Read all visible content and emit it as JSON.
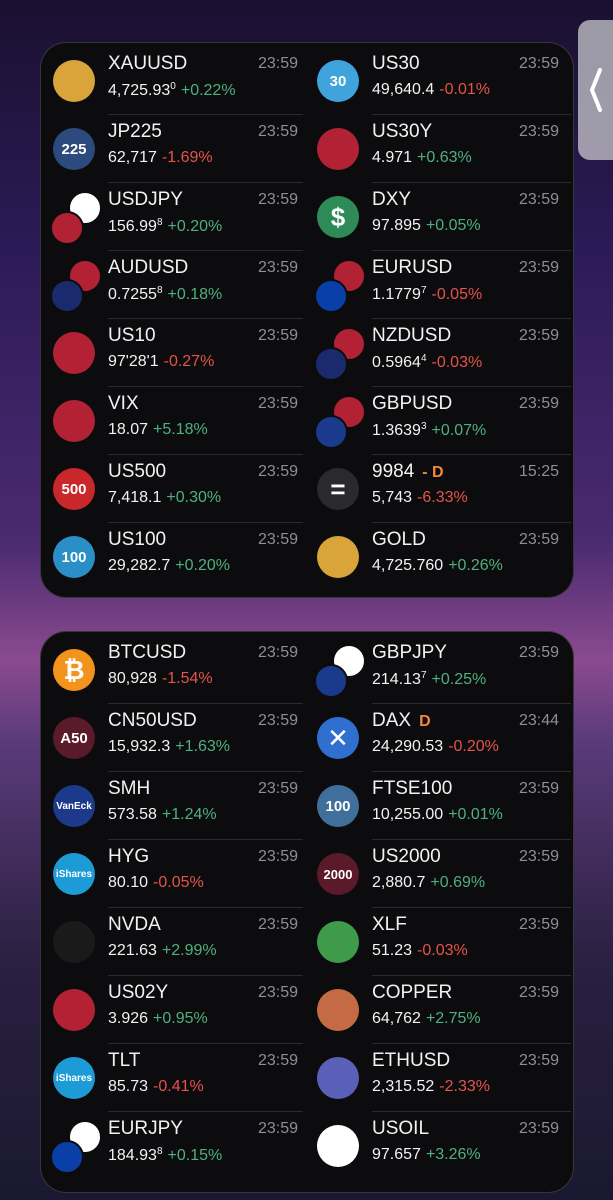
{
  "widgets": [
    {
      "items": [
        {
          "symbol": "XAUUSD",
          "time": "23:59",
          "price": "4,725.93",
          "price_sup": "0",
          "change": "+0.22%",
          "icon": [
            "#d9a43a"
          ]
        },
        {
          "symbol": "US30",
          "time": "23:59",
          "price": "49,640.4",
          "change": "-0.01%",
          "icon": [
            "#3fa3dc"
          ],
          "icon_text": "30"
        },
        {
          "symbol": "JP225",
          "time": "23:59",
          "price": "62,717",
          "change": "-1.69%",
          "icon": [
            "#2c4a7e"
          ],
          "icon_text": "225"
        },
        {
          "symbol": "US30Y",
          "time": "23:59",
          "price": "4.971",
          "change": "+0.63%",
          "icon": [
            "#b22234"
          ]
        },
        {
          "symbol": "USDJPY",
          "time": "23:59",
          "price": "156.99",
          "price_sup": "8",
          "change": "+0.20%",
          "icon": [
            "#ffffff",
            "#b22234"
          ]
        },
        {
          "symbol": "DXY",
          "time": "23:59",
          "price": "97.895",
          "change": "+0.05%",
          "icon": [
            "#2e8b57"
          ],
          "icon_text": "$"
        },
        {
          "symbol": "AUDUSD",
          "time": "23:59",
          "price": "0.7255",
          "price_sup": "8",
          "change": "+0.18%",
          "icon": [
            "#b22234",
            "#1a2a6c"
          ]
        },
        {
          "symbol": "EURUSD",
          "time": "23:59",
          "price": "1.1779",
          "price_sup": "7",
          "change": "-0.05%",
          "icon": [
            "#b22234",
            "#0a3fa8"
          ]
        },
        {
          "symbol": "US10",
          "time": "23:59",
          "price": "97'28'1",
          "change": "-0.27%",
          "icon": [
            "#b22234"
          ]
        },
        {
          "symbol": "NZDUSD",
          "time": "23:59",
          "price": "0.5964",
          "price_sup": "4",
          "change": "-0.03%",
          "icon": [
            "#b22234",
            "#1a2a6c"
          ]
        },
        {
          "symbol": "VIX",
          "time": "23:59",
          "price": "18.07",
          "change": "+5.18%",
          "icon": [
            "#b22234"
          ]
        },
        {
          "symbol": "GBPUSD",
          "time": "23:59",
          "price": "1.3639",
          "price_sup": "3",
          "change": "+0.07%",
          "icon": [
            "#b22234",
            "#1a3a8c"
          ]
        },
        {
          "symbol": "US500",
          "time": "23:59",
          "price": "7,418.1",
          "change": "+0.30%",
          "icon": [
            "#c8282c"
          ],
          "icon_text": "500"
        },
        {
          "symbol": "9984",
          "badge": "- D",
          "time": "15:25",
          "price": "5,743",
          "change": "-6.33%",
          "icon": [
            "#2a2a2e"
          ],
          "icon_text": "="
        },
        {
          "symbol": "US100",
          "time": "23:59",
          "price": "29,282.7",
          "change": "+0.20%",
          "icon": [
            "#2a8fc6"
          ],
          "icon_text": "100"
        },
        {
          "symbol": "GOLD",
          "time": "23:59",
          "price": "4,725.760",
          "change": "+0.26%",
          "icon": [
            "#d9a43a"
          ]
        }
      ]
    },
    {
      "items": [
        {
          "symbol": "BTCUSD",
          "time": "23:59",
          "price": "80,928",
          "change": "-1.54%",
          "icon": [
            "#f2931c"
          ],
          "icon_text": "₿"
        },
        {
          "symbol": "GBPJPY",
          "time": "23:59",
          "price": "214.13",
          "price_sup": "7",
          "change": "+0.25%",
          "icon": [
            "#ffffff",
            "#1a3a8c"
          ]
        },
        {
          "symbol": "CN50USD",
          "time": "23:59",
          "price": "15,932.3",
          "change": "+1.63%",
          "icon": [
            "#5a1a2a"
          ],
          "icon_text": "A50"
        },
        {
          "symbol": "DAX",
          "badge": "D",
          "time": "23:44",
          "price": "24,290.53",
          "change": "-0.20%",
          "icon": [
            "#2f6fd0"
          ],
          "icon_text": "✕"
        },
        {
          "symbol": "SMH",
          "time": "23:59",
          "price": "573.58",
          "change": "+1.24%",
          "icon": [
            "#1d3a8a"
          ],
          "icon_text": "VanEck"
        },
        {
          "symbol": "FTSE100",
          "time": "23:59",
          "price": "10,255.00",
          "change": "+0.01%",
          "icon": [
            "#3f6f9a"
          ],
          "icon_text": "100"
        },
        {
          "symbol": "HYG",
          "time": "23:59",
          "price": "80.10",
          "change": "-0.05%",
          "icon": [
            "#1d9bd7"
          ],
          "icon_text": "iShares"
        },
        {
          "symbol": "US2000",
          "time": "23:59",
          "price": "2,880.7",
          "change": "+0.69%",
          "icon": [
            "#5a1a2a"
          ],
          "icon_text": "2000"
        },
        {
          "symbol": "NVDA",
          "time": "23:59",
          "price": "221.63",
          "change": "+2.99%",
          "icon": [
            "#1a1a1a"
          ]
        },
        {
          "symbol": "XLF",
          "time": "23:59",
          "price": "51.23",
          "change": "-0.03%",
          "icon": [
            "#3f9a4a"
          ]
        },
        {
          "symbol": "US02Y",
          "time": "23:59",
          "price": "3.926",
          "change": "+0.95%",
          "icon": [
            "#b22234"
          ]
        },
        {
          "symbol": "COPPER",
          "time": "23:59",
          "price": "64,762",
          "change": "+2.75%",
          "icon": [
            "#c46a45"
          ]
        },
        {
          "symbol": "TLT",
          "time": "23:59",
          "price": "85.73",
          "change": "-0.41%",
          "icon": [
            "#1d9bd7"
          ],
          "icon_text": "iShares"
        },
        {
          "symbol": "ETHUSD",
          "time": "23:59",
          "price": "2,315.52",
          "change": "-2.33%",
          "icon": [
            "#5a5fb8"
          ]
        },
        {
          "symbol": "EURJPY",
          "time": "23:59",
          "price": "184.93",
          "price_sup": "8",
          "change": "+0.15%",
          "icon": [
            "#ffffff",
            "#0a3fa8"
          ]
        },
        {
          "symbol": "USOIL",
          "time": "23:59",
          "price": "97.657",
          "change": "+3.26%",
          "icon": [
            "#ffffff"
          ]
        }
      ]
    }
  ]
}
